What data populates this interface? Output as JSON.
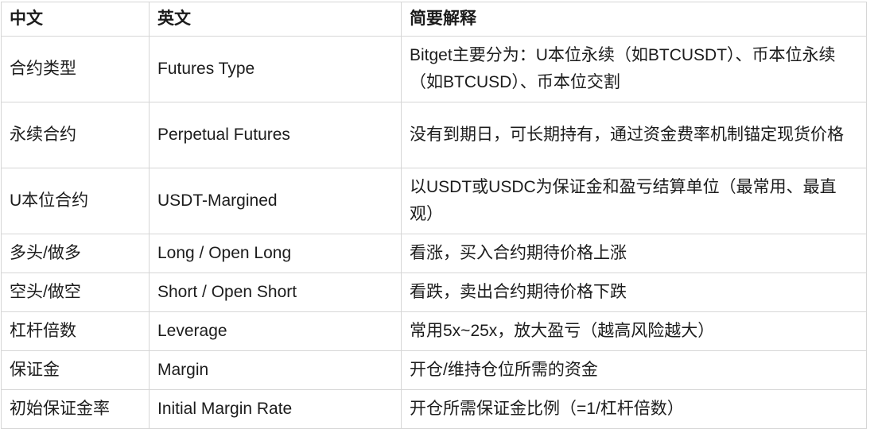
{
  "table": {
    "headers": [
      "中文",
      "英文",
      "简要解释"
    ],
    "rows": [
      {
        "cn": "合约类型",
        "en": "Futures Type",
        "desc": "Bitget主要分为：U本位永续（如BTCUSDT）、币本位永续（如BTCUSD）、币本位交割"
      },
      {
        "cn": "永续合约",
        "en": "Perpetual Futures",
        "desc": "没有到期日，可长期持有，通过资金费率机制锚定现货价格"
      },
      {
        "cn": "U本位合约",
        "en": "USDT-Margined",
        "desc": "以USDT或USDC为保证金和盈亏结算单位（最常用、最直观）"
      },
      {
        "cn": "多头/做多",
        "en": "Long / Open Long",
        "desc": "看涨，买入合约期待价格上涨"
      },
      {
        "cn": "空头/做空",
        "en": "Short / Open Short",
        "desc": "看跌，卖出合约期待价格下跌"
      },
      {
        "cn": "杠杆倍数",
        "en": "Leverage",
        "desc": "常用5x~25x，放大盈亏（越高风险越大）"
      },
      {
        "cn": "保证金",
        "en": "Margin",
        "desc": "开仓/维持仓位所需的资金"
      },
      {
        "cn": "初始保证金率",
        "en": "Initial Margin Rate",
        "desc": "开仓所需保证金比例（=1/杠杆倍数）"
      }
    ]
  }
}
